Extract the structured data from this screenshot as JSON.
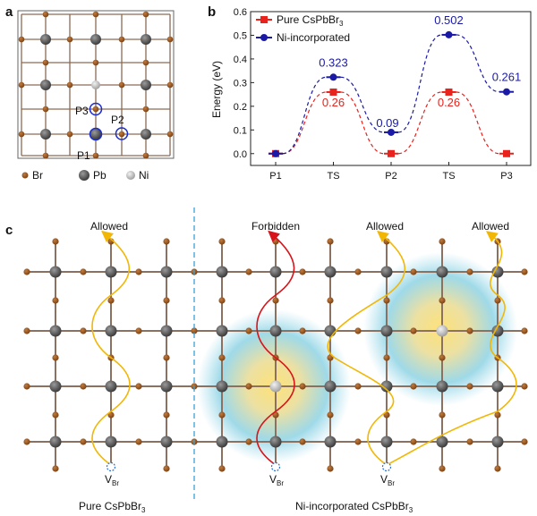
{
  "panels": {
    "a": "a",
    "b": "b",
    "c": "c"
  },
  "panel_a": {
    "legend": [
      {
        "name": "Br",
        "color": "#9b5a26"
      },
      {
        "name": "Pb",
        "color": "#5c5c5c"
      },
      {
        "name": "Ni",
        "color": "#bdbdbd"
      }
    ],
    "positions": [
      "P1",
      "P2",
      "P3"
    ]
  },
  "chart_data": {
    "type": "line",
    "ylabel": "Energy (eV)",
    "xlabel": "",
    "categories": [
      "P1",
      "TS",
      "P2",
      "TS",
      "P3"
    ],
    "ylim": [
      -0.05,
      0.6
    ],
    "yticks": [
      "0.0",
      "0.1",
      "0.2",
      "0.3",
      "0.4",
      "0.5",
      "0.6"
    ],
    "legend_position": "top-left",
    "series": [
      {
        "name_main": "Pure CsPbBr",
        "name_sub": "3",
        "color": "#e8221c",
        "marker": "square",
        "values": [
          0,
          0.26,
          0,
          0.26,
          0
        ],
        "labels": [
          "",
          "0.26",
          "",
          "0.26",
          ""
        ]
      },
      {
        "name_main": "Ni-incorporated",
        "name_sub": "",
        "color": "#1a1aa6",
        "marker": "circle",
        "values": [
          0,
          0.323,
          0.09,
          0.502,
          0.261
        ],
        "labels": [
          "",
          "0.323",
          "0.09",
          "0.502",
          "0.261"
        ]
      }
    ]
  },
  "panel_c": {
    "pathway_labels": [
      "Allowed",
      "Forbidden",
      "Allowed",
      "Allowed"
    ],
    "vacancy_main": "V",
    "vacancy_sub": "Br",
    "bottom_left_main": "Pure CsPbBr",
    "bottom_left_sub": "3",
    "bottom_right_main": "Ni-incorporated CsPbBr",
    "bottom_right_sub": "3"
  },
  "colors": {
    "br": "#9b5a26",
    "pb": "#5a5a5a",
    "ni": "#c8c8c8",
    "allowed_path": "#f2b705",
    "forbidden_path": "#d7141a",
    "divider": "#3aa0d8",
    "grid": "#8a8a8a"
  }
}
